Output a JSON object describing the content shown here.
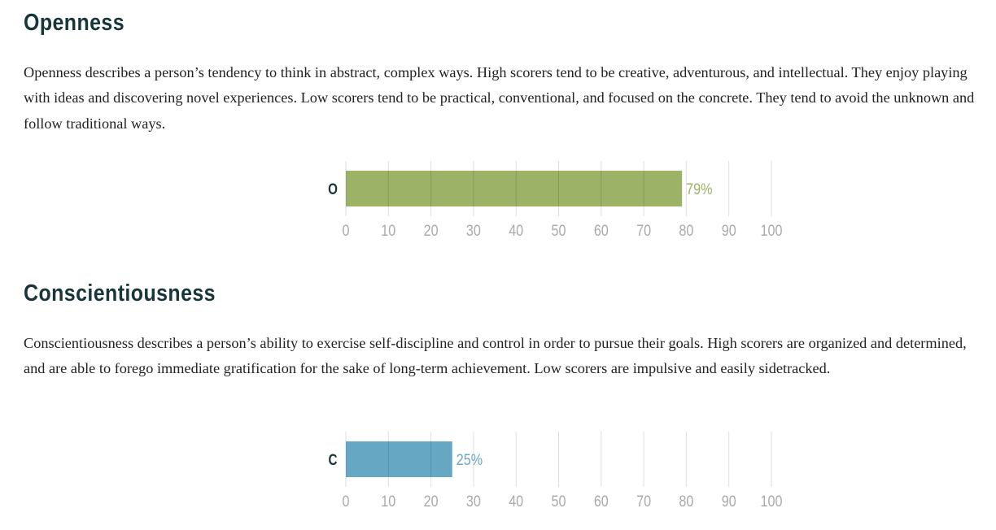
{
  "sections": [
    {
      "title": "Openness",
      "description": "Openness describes a person’s tendency to think in abstract, complex ways. High scorers tend to be creative, adventurous, and intellectual. They enjoy playing with ideas and discovering novel experiences. Low scorers tend to be practical, conventional, and focused on the concrete. They tend to avoid the unknown and follow traditional ways."
    },
    {
      "title": "Conscientiousness",
      "description": "Conscientiousness describes a person’s ability to exercise self-discipline and control in order to pursue their goals. High scorers are organized and determined, and are able to forego immediate gratification for the sake of long-term achievement. Low scorers are impulsive and easily sidetracked."
    }
  ],
  "chart_data": [
    {
      "type": "bar",
      "orientation": "horizontal",
      "categories": [
        "O"
      ],
      "values": [
        79
      ],
      "value_labels": [
        "79%"
      ],
      "xlim": [
        0,
        100
      ],
      "ticks": [
        "0",
        "10",
        "20",
        "30",
        "40",
        "50",
        "60",
        "70",
        "80",
        "90",
        "100"
      ],
      "color": "#9bb267",
      "grid": true
    },
    {
      "type": "bar",
      "orientation": "horizontal",
      "categories": [
        "C"
      ],
      "values": [
        25
      ],
      "value_labels": [
        "25%"
      ],
      "xlim": [
        0,
        100
      ],
      "ticks": [
        "0",
        "10",
        "20",
        "30",
        "40",
        "50",
        "60",
        "70",
        "80",
        "90",
        "100"
      ],
      "color": "#66a8c3",
      "grid": true
    }
  ]
}
